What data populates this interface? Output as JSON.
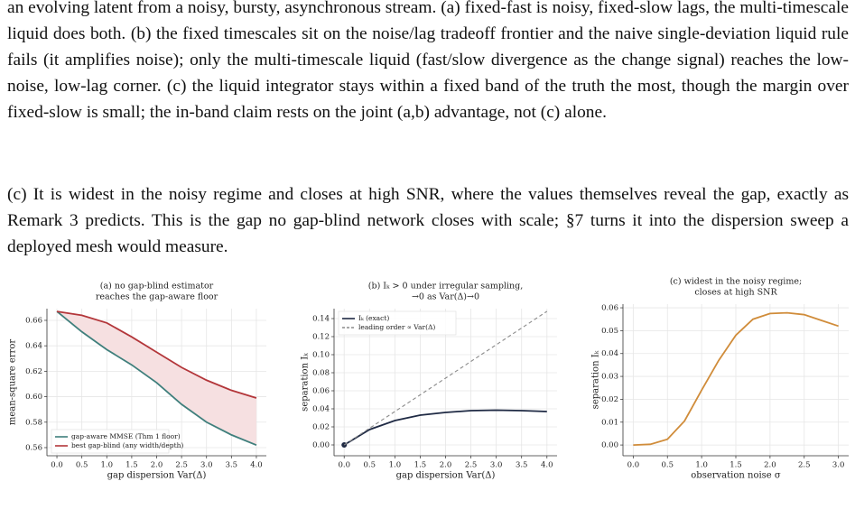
{
  "paragraphs": [
    "an evolving latent from a noisy, bursty, asynchronous stream. (a) fixed-fast is noisy, fixed-slow lags, the multi-timescale liquid does both. (b) the fixed timescales sit on the noise/lag tradeoff frontier and the naive single-deviation liquid rule fails (it amplifies noise); only the multi-timescale liquid (fast/slow divergence as the change signal) reaches the low-noise, low-lag corner. (c) the liquid integrator stays within a fixed band of the truth the most, though the margin over fixed-slow is small; the in-band claim rests on the joint (a,b) advantage, not (c) alone.",
    "(c) It is widest in the noisy regime and closes at high SNR, where the values themselves reveal the gap, exactly as Remark 3 predicts. This is the gap no gap-blind network closes with scale; §7 turns it into the dispersion sweep a deployed mesh would measure."
  ],
  "chart_data": [
    {
      "type": "line",
      "title": [
        "(a) no gap-blind estimator",
        "reaches the gap-aware floor"
      ],
      "x_label": "gap dispersion Var(Δ)",
      "y_label": "mean-square error",
      "x": [
        0,
        0.5,
        1,
        1.5,
        2,
        2.5,
        3,
        3.5,
        4
      ],
      "series": [
        {
          "name": "gap-aware MMSE (Thm 1 floor)",
          "color": "#3f7f7c",
          "values": [
            0.667,
            0.651,
            0.637,
            0.625,
            0.611,
            0.594,
            0.58,
            0.57,
            0.562
          ]
        },
        {
          "name": "best gap-blind (any width/depth)",
          "color": "#b3363a",
          "values": [
            0.667,
            0.664,
            0.658,
            0.647,
            0.635,
            0.623,
            0.613,
            0.605,
            0.599
          ]
        }
      ],
      "shade_between_series": true,
      "shade_color": "#f6e0e1",
      "xlim": [
        -0.2,
        4.2
      ],
      "ylim": [
        0.5536,
        0.6692
      ],
      "xticks": [
        {
          "value": 0,
          "label": "0.0"
        },
        0.5,
        {
          "value": 1,
          "label": "1.0"
        },
        1.5,
        {
          "value": 2,
          "label": "2.0"
        },
        2.5,
        {
          "value": 3,
          "label": "3.0"
        },
        3.5,
        {
          "value": 4,
          "label": "4.0"
        }
      ],
      "yticks": [
        0.56,
        0.58,
        {
          "value": 0.6,
          "label": "0.60"
        },
        0.62,
        0.64,
        0.66
      ],
      "grid": true,
      "legend": "lower left"
    },
    {
      "type": "line",
      "title": [
        "(b) Iₖ > 0 under irregular sampling,",
        "→0 as Var(Δ)→0"
      ],
      "x_label": "gap dispersion Var(Δ)",
      "y_label": "separation Iₖ",
      "x": [
        0,
        0.5,
        1,
        1.5,
        2,
        2.5,
        3,
        3.5,
        4
      ],
      "series": [
        {
          "name": "Iₖ (exact)",
          "color": "#1f2a44",
          "values": [
            0,
            0.017,
            0.027,
            0.033,
            0.036,
            0.038,
            0.0385,
            0.038,
            0.037
          ],
          "marker_at_start": true
        },
        {
          "name": "leading order ∝ Var(Δ)",
          "color": "#8a8a8a",
          "linestyle": "dashed",
          "values": [
            0,
            0.0185,
            0.037,
            0.0555,
            0.074,
            0.0925,
            0.111,
            0.1295,
            0.148
          ]
        }
      ],
      "xlim": [
        -0.2,
        4.2
      ],
      "ylim": [
        -0.012,
        0.151
      ],
      "xticks": [
        {
          "value": 0,
          "label": "0.0"
        },
        0.5,
        {
          "value": 1,
          "label": "1.0"
        },
        1.5,
        {
          "value": 2,
          "label": "2.0"
        },
        2.5,
        {
          "value": 3,
          "label": "3.0"
        },
        3.5,
        {
          "value": 4,
          "label": "4.0"
        }
      ],
      "yticks": [
        {
          "value": 0,
          "label": "0.00"
        },
        0.02,
        0.04,
        0.06,
        0.08,
        {
          "value": 0.1,
          "label": "0.10"
        },
        0.12,
        0.14
      ],
      "grid": true,
      "legend": "upper left"
    },
    {
      "type": "line",
      "title": [
        "(c) widest in the noisy regime;",
        "closes at high SNR"
      ],
      "x_label": "observation noise σ",
      "y_label": "separation Iₖ",
      "x": [
        0,
        0.25,
        0.5,
        0.75,
        1,
        1.25,
        1.5,
        1.75,
        2,
        2.25,
        2.5,
        2.75,
        3
      ],
      "series": [
        {
          "color": "#d08c3a",
          "values": [
            0,
            0.0003,
            0.0025,
            0.0105,
            0.024,
            0.037,
            0.048,
            0.055,
            0.0575,
            0.0578,
            0.057,
            0.0545,
            0.052
          ]
        }
      ],
      "xlim": [
        -0.15,
        3.15
      ],
      "ylim": [
        -0.0047,
        0.0616
      ],
      "xticks": [
        {
          "value": 0,
          "label": "0.0"
        },
        0.5,
        {
          "value": 1,
          "label": "1.0"
        },
        1.5,
        {
          "value": 2,
          "label": "2.0"
        },
        2.5,
        {
          "value": 3,
          "label": "3.0"
        }
      ],
      "yticks": [
        {
          "value": 0,
          "label": "0.00"
        },
        0.01,
        0.02,
        0.03,
        0.04,
        0.05,
        0.06
      ],
      "grid": true
    }
  ]
}
